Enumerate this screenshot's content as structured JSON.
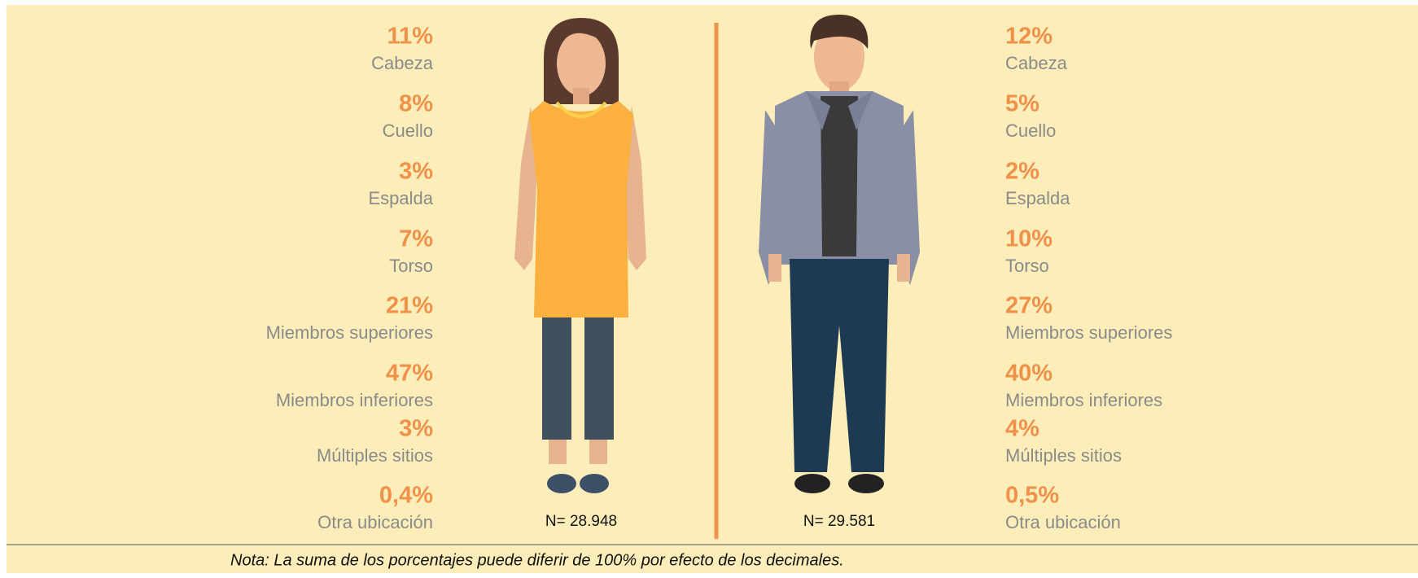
{
  "female": {
    "items": [
      {
        "value": "11%",
        "label": "Cabeza"
      },
      {
        "value": "8%",
        "label": "Cuello"
      },
      {
        "value": "3%",
        "label": "Espalda"
      },
      {
        "value": "7%",
        "label": "Torso"
      },
      {
        "value": "21%",
        "label": "Miembros superiores"
      },
      {
        "value": "47%",
        "label": "Miembros inferiores"
      },
      {
        "value": "3%",
        "label": "Múltiples sitios"
      },
      {
        "value": "0,4%",
        "label": "Otra ubicación"
      }
    ],
    "n": "N= 28.948"
  },
  "male": {
    "items": [
      {
        "value": "12%",
        "label": "Cabeza"
      },
      {
        "value": "5%",
        "label": "Cuello"
      },
      {
        "value": "2%",
        "label": "Espalda"
      },
      {
        "value": "10%",
        "label": "Torso"
      },
      {
        "value": "27%",
        "label": "Miembros superiores"
      },
      {
        "value": "40%",
        "label": "Miembros inferiores"
      },
      {
        "value": "4%",
        "label": "Múltiples sitios"
      },
      {
        "value": "0,5%",
        "label": "Otra ubicación"
      }
    ],
    "n": "N= 29.581"
  },
  "note": "Nota: La suma de los porcentajes puede diferir de 100% por efecto de los decimales."
}
